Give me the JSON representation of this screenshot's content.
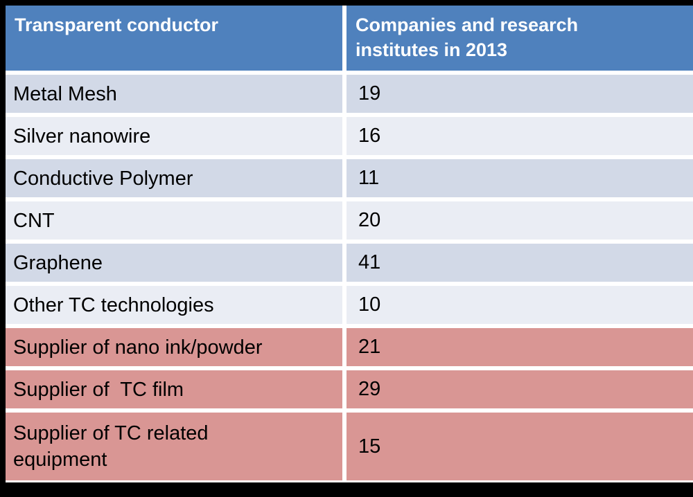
{
  "table": {
    "header": {
      "col1": "Transparent conductor",
      "col2": "Companies and research\ninstitutes in 2013"
    },
    "rows": [
      {
        "label": "Metal Mesh",
        "value": "19",
        "band": "dark"
      },
      {
        "label": "Silver nanowire",
        "value": "16",
        "band": "light"
      },
      {
        "label": "Conductive Polymer",
        "value": "11",
        "band": "dark"
      },
      {
        "label": "CNT",
        "value": "20",
        "band": "light"
      },
      {
        "label": "Graphene",
        "value": "41",
        "band": "dark"
      },
      {
        "label": "Other TC technologies",
        "value": "10",
        "band": "light"
      },
      {
        "label": "Supplier of nano ink/powder",
        "value": "21",
        "band": "pink"
      },
      {
        "label": "Supplier of  TC film",
        "value": "29",
        "band": "pink"
      },
      {
        "label": "Supplier of TC related\nequipment",
        "value": "15",
        "band": "pink"
      }
    ]
  },
  "colors": {
    "header_bg": "#4F81BD",
    "header_text": "#FFFFFF",
    "band_dark": "#D2D9E7",
    "band_light": "#EAEDF4",
    "band_pink": "#D99694",
    "body_text": "#000000",
    "frame": "#000000",
    "grid_gap": "#FFFFFF"
  },
  "chart_data": {
    "type": "table",
    "title": "",
    "columns": [
      "Transparent conductor",
      "Companies and research institutes in 2013"
    ],
    "rows": [
      [
        "Metal Mesh",
        19
      ],
      [
        "Silver nanowire",
        16
      ],
      [
        "Conductive Polymer",
        11
      ],
      [
        "CNT",
        20
      ],
      [
        "Graphene",
        41
      ],
      [
        "Other TC technologies",
        10
      ],
      [
        "Supplier of nano ink/powder",
        21
      ],
      [
        "Supplier of  TC film",
        29
      ],
      [
        "Supplier of TC related equipment",
        15
      ]
    ],
    "groups": {
      "transparent_conductor_technologies": [
        "Metal Mesh",
        "Silver nanowire",
        "Conductive Polymer",
        "CNT",
        "Graphene",
        "Other TC technologies"
      ],
      "suppliers": [
        "Supplier of nano ink/powder",
        "Supplier of  TC film",
        "Supplier of TC related equipment"
      ]
    }
  }
}
